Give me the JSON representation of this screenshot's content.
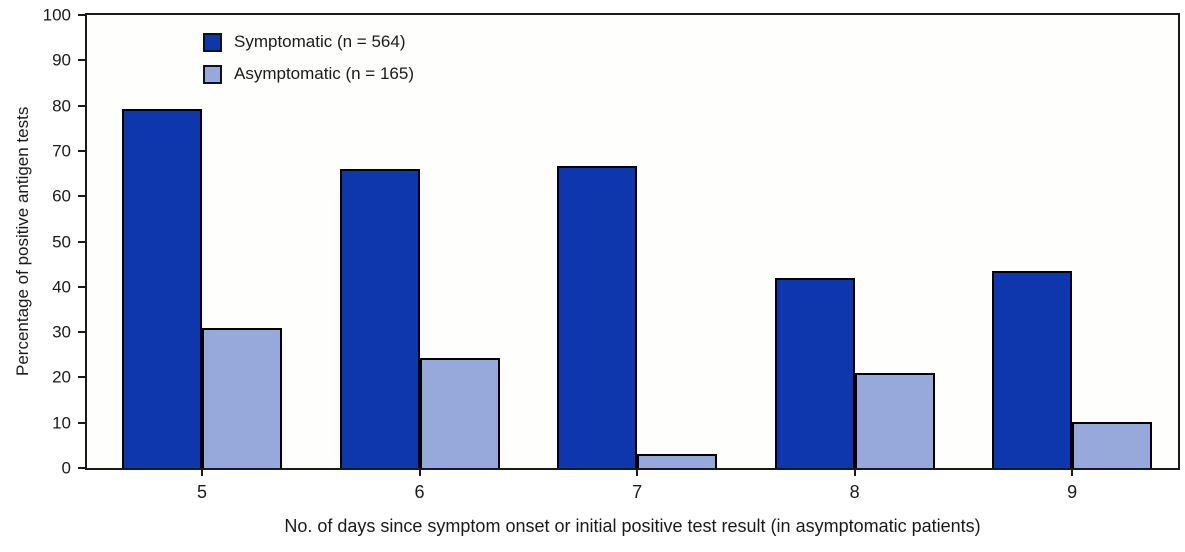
{
  "chart_data": {
    "type": "bar",
    "categories": [
      "5",
      "6",
      "7",
      "8",
      "9"
    ],
    "series": [
      {
        "name": "Symptomatic (n = 564)",
        "color": "#0e37ad",
        "values": [
          79.3,
          66.1,
          66.7,
          42.0,
          43.4
        ]
      },
      {
        "name": "Asymptomatic (n = 165)",
        "color": "#96a9da",
        "values": [
          30.9,
          24.3,
          3.0,
          21.0,
          10.1
        ]
      }
    ],
    "title": "",
    "xlabel": "No. of days since symptom onset or initial positive test result (in asymptomatic patients)",
    "ylabel": "Percentage of positive antigen tests",
    "ylim": [
      0,
      100
    ],
    "yticks": [
      0,
      10,
      20,
      30,
      40,
      50,
      60,
      70,
      80,
      90,
      100
    ],
    "grid": "off",
    "legend_position": "top-left-inside",
    "bar_outline_color": "#000000",
    "frame_color": "#1a1a1a"
  }
}
